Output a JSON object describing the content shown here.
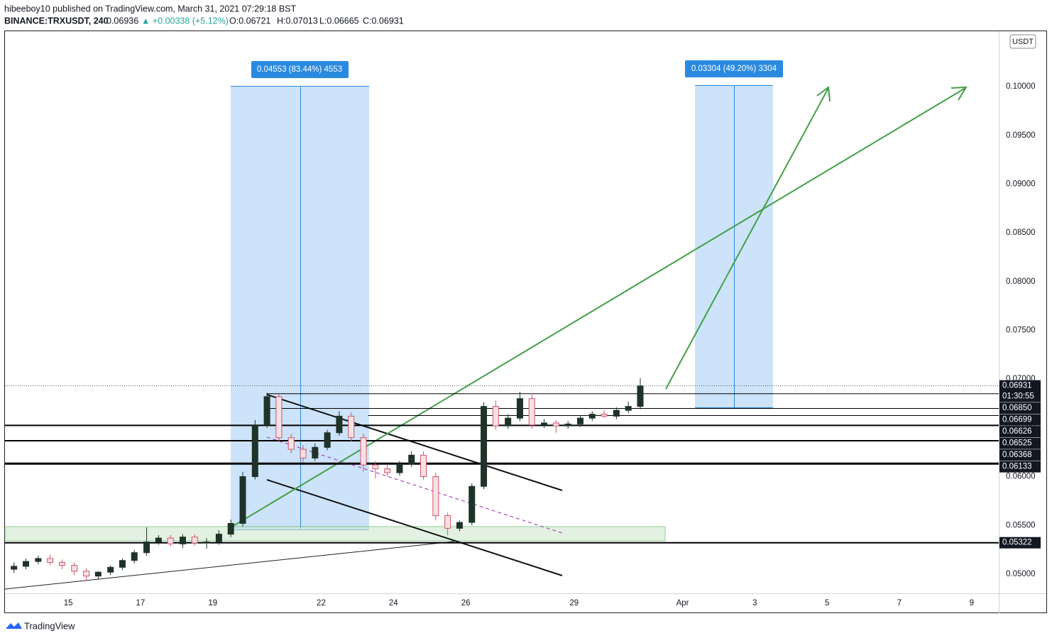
{
  "chart_data": {
    "type": "candlestick",
    "header": {
      "published": "hibeeboy10 published on TradingView.com, March 31, 2021 07:29:18 BST",
      "symbol": "BINANCE:TRXUSDT, 240",
      "last": "0.06936",
      "change": "▲ +0.00338 (+5.12%)",
      "open": "O:0.06721",
      "high": "H:0.07013",
      "low": "L:0.06665",
      "close": "C:0.06931"
    },
    "currency": "USDT",
    "brand": "TradingView",
    "x": [
      13.5,
      13.83,
      14.17,
      14.5,
      14.83,
      15.17,
      15.5,
      15.83,
      16.17,
      16.5,
      16.83,
      17.17,
      17.5,
      17.83,
      18.17,
      18.5,
      18.83,
      19.17,
      19.5,
      19.83,
      20.17,
      20.5,
      20.83,
      21.17,
      21.5,
      21.83,
      22.17,
      22.5,
      22.83,
      23.17,
      23.5,
      23.83,
      24.17,
      24.5,
      24.83,
      25.17,
      25.5,
      25.83,
      26.17,
      26.5,
      26.83,
      27.17,
      27.5,
      27.83,
      28.17,
      28.5,
      28.83,
      29.17,
      29.5,
      29.83,
      30.17,
      30.5,
      30.83
    ],
    "open": [
      0.0505,
      0.0508,
      0.0513,
      0.0516,
      0.0512,
      0.0509,
      0.0503,
      0.0498,
      0.0502,
      0.0507,
      0.0514,
      0.0522,
      0.0533,
      0.0537,
      0.0531,
      0.0538,
      0.0532,
      0.0533,
      0.0541,
      0.0552,
      0.06,
      0.0653,
      0.0682,
      0.064,
      0.0628,
      0.0619,
      0.063,
      0.0645,
      0.0662,
      0.064,
      0.0612,
      0.0608,
      0.0604,
      0.0613,
      0.0622,
      0.06,
      0.056,
      0.0547,
      0.0553,
      0.059,
      0.0672,
      0.0652,
      0.066,
      0.068,
      0.0653,
      0.0655,
      0.0652,
      0.0654,
      0.066,
      0.0664,
      0.0662,
      0.0668,
      0.0672
    ],
    "high": [
      0.0512,
      0.0516,
      0.0519,
      0.052,
      0.0515,
      0.0512,
      0.0506,
      0.0503,
      0.0509,
      0.0516,
      0.0525,
      0.0548,
      0.054,
      0.054,
      0.0541,
      0.0541,
      0.0537,
      0.0545,
      0.0556,
      0.0605,
      0.0658,
      0.0686,
      0.0685,
      0.0644,
      0.0632,
      0.0634,
      0.0648,
      0.0667,
      0.0666,
      0.0644,
      0.0616,
      0.0612,
      0.0616,
      0.0626,
      0.0626,
      0.0604,
      0.0563,
      0.0555,
      0.0593,
      0.0676,
      0.0678,
      0.0664,
      0.0687,
      0.0684,
      0.0659,
      0.0658,
      0.0657,
      0.0663,
      0.0667,
      0.0668,
      0.0671,
      0.0677,
      0.0701
    ],
    "low": [
      0.0501,
      0.0505,
      0.051,
      0.0509,
      0.0505,
      0.0499,
      0.0493,
      0.0495,
      0.0499,
      0.0504,
      0.0511,
      0.0519,
      0.053,
      0.0528,
      0.0527,
      0.0529,
      0.0526,
      0.053,
      0.0538,
      0.0549,
      0.0597,
      0.065,
      0.0636,
      0.0624,
      0.0615,
      0.0616,
      0.0627,
      0.0642,
      0.0636,
      0.0605,
      0.0598,
      0.06,
      0.0601,
      0.061,
      0.0597,
      0.0555,
      0.054,
      0.0544,
      0.055,
      0.0587,
      0.0648,
      0.0649,
      0.0657,
      0.0649,
      0.065,
      0.0645,
      0.0649,
      0.0651,
      0.0657,
      0.066,
      0.0659,
      0.0665,
      0.0669
    ],
    "close": [
      0.0508,
      0.0513,
      0.0516,
      0.0512,
      0.0509,
      0.0503,
      0.0498,
      0.0502,
      0.0507,
      0.0514,
      0.0522,
      0.0533,
      0.0537,
      0.0531,
      0.0538,
      0.0532,
      0.0533,
      0.0541,
      0.0552,
      0.06,
      0.0653,
      0.0682,
      0.064,
      0.0628,
      0.0619,
      0.063,
      0.0645,
      0.0662,
      0.064,
      0.0612,
      0.0608,
      0.0604,
      0.0613,
      0.0622,
      0.06,
      0.056,
      0.0547,
      0.0553,
      0.059,
      0.0672,
      0.0652,
      0.066,
      0.068,
      0.0653,
      0.0655,
      0.0652,
      0.0654,
      0.066,
      0.0664,
      0.0662,
      0.0668,
      0.0672,
      0.0693
    ],
    "up_color": "#1f3329",
    "down_color": "#d0566a",
    "xlim": [
      13.25,
      40.75
    ],
    "xticks": [
      15,
      17,
      19,
      22,
      24,
      26,
      29,
      {
        "value": 32,
        "label": "Apr"
      },
      {
        "value": 34,
        "label": "3"
      },
      {
        "value": 36,
        "label": "5"
      },
      {
        "value": 38,
        "label": "7"
      },
      {
        "value": 40,
        "label": "9"
      }
    ],
    "ylim": [
      0.04803,
      0.10568
    ],
    "yticks": [
      {
        "value": 0.05,
        "label": "0.05000"
      },
      {
        "value": 0.055,
        "label": "0.05500"
      },
      {
        "value": 0.06,
        "label": "0.06000"
      },
      {
        "value": 0.065,
        "label": "0.06500"
      },
      {
        "value": 0.07,
        "label": "0.07000"
      },
      {
        "value": 0.075,
        "label": "0.07500"
      },
      {
        "value": 0.08,
        "label": "0.08000"
      },
      {
        "value": 0.085,
        "label": "0.08500"
      },
      {
        "value": 0.09,
        "label": "0.09000"
      },
      {
        "value": 0.095,
        "label": "0.09500"
      },
      {
        "value": 0.1,
        "label": "0.10000"
      }
    ],
    "current_price": {
      "value": 0.06931,
      "label": "0.06931",
      "countdown": "01:30:55"
    },
    "price_lines": [
      {
        "value": 0.0685,
        "label": "0.06850",
        "from": 20.5,
        "width": 1
      },
      {
        "value": 0.06699,
        "label": "0.06699",
        "from": 20.5,
        "width": 1
      },
      {
        "value": 0.06626,
        "label": "0.06626",
        "from": 23.3,
        "width": 1
      },
      {
        "value": 0.06525,
        "label": "0.06525",
        "from": 13.25,
        "width": 2
      },
      {
        "value": 0.06368,
        "label": "0.06368",
        "from": 13.25,
        "width": 2
      },
      {
        "value": 0.06133,
        "label": "0.06133",
        "from": 13.25,
        "width": 3
      },
      {
        "value": 0.05322,
        "label": "0.05322",
        "from": 13.25,
        "width": 2
      }
    ],
    "annotations": [
      "0.04553 (83.44%) 4553",
      "0.03304 (49.20%) 3304"
    ]
  }
}
